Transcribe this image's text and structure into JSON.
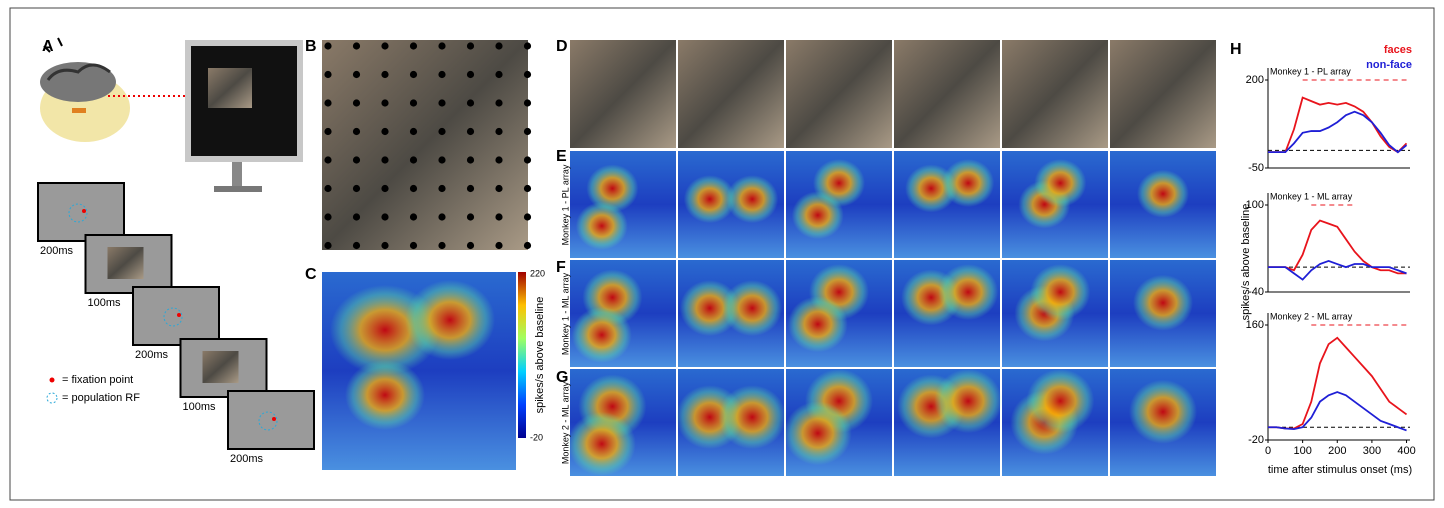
{
  "figure": {
    "panel_labels": [
      "A",
      "B",
      "C",
      "D",
      "E",
      "F",
      "G",
      "H"
    ],
    "a_timings": [
      "200ms",
      "100ms",
      "200ms",
      "100ms",
      "200ms"
    ],
    "a_legend": [
      "= fixation point",
      "= population RF"
    ],
    "c_colorbar": {
      "title": "spikes/s above baseline",
      "ticks": [
        220,
        -20
      ]
    },
    "row_labels": [
      "Monkey 1 - PL array",
      "Monkey 1 - ML array",
      "Monkey 2 - ML array"
    ],
    "h_ylabel": "spikes/s above baseline",
    "h_xlabel": "time after stimulus onset (ms)"
  },
  "chart_data": [
    {
      "type": "line",
      "title": "Monkey 1 - PL array",
      "x": [
        0,
        25,
        50,
        75,
        100,
        125,
        150,
        175,
        200,
        225,
        250,
        275,
        300,
        325,
        350,
        375,
        400
      ],
      "xlim": [
        0,
        410
      ],
      "ylim": [
        -50,
        200
      ],
      "yticks": [
        200,
        -50
      ],
      "significance": [
        100,
        400
      ],
      "series": [
        {
          "name": "faces",
          "color": "#e8141c",
          "values": [
            -5,
            -5,
            -5,
            60,
            150,
            140,
            130,
            135,
            130,
            135,
            125,
            110,
            80,
            40,
            10,
            -5,
            20
          ]
        },
        {
          "name": "non-face",
          "color": "#1f1fd6",
          "values": [
            -5,
            -5,
            -5,
            20,
            50,
            55,
            55,
            65,
            80,
            100,
            110,
            100,
            80,
            50,
            15,
            -5,
            15
          ]
        }
      ]
    },
    {
      "type": "line",
      "title": "Monkey 1 - ML array",
      "x": [
        0,
        25,
        50,
        75,
        100,
        125,
        150,
        175,
        200,
        225,
        250,
        275,
        300,
        325,
        350,
        375,
        400
      ],
      "xlim": [
        0,
        410
      ],
      "ylim": [
        -40,
        100
      ],
      "yticks": [
        100,
        -40
      ],
      "significance": [
        125,
        250
      ],
      "series": [
        {
          "name": null,
          "color": "#e8141c",
          "values": [
            0,
            0,
            0,
            -5,
            20,
            60,
            75,
            70,
            65,
            45,
            25,
            10,
            0,
            -5,
            -5,
            -10,
            -10
          ]
        },
        {
          "name": null,
          "color": "#1f1fd6",
          "values": [
            0,
            0,
            0,
            -10,
            -20,
            -5,
            5,
            10,
            5,
            0,
            5,
            5,
            0,
            0,
            0,
            -5,
            -10
          ]
        }
      ]
    },
    {
      "type": "line",
      "title": "Monkey 2 - ML array",
      "x": [
        0,
        25,
        50,
        75,
        100,
        125,
        150,
        175,
        200,
        225,
        250,
        275,
        300,
        325,
        350,
        375,
        400
      ],
      "xlim": [
        0,
        410
      ],
      "ylim": [
        -20,
        160
      ],
      "yticks": [
        160,
        -20
      ],
      "xticks": [
        0,
        100,
        200,
        300,
        400
      ],
      "significance": [
        125,
        400
      ],
      "series": [
        {
          "name": null,
          "color": "#e8141c",
          "values": [
            0,
            0,
            -2,
            -2,
            5,
            40,
            100,
            130,
            140,
            125,
            110,
            95,
            80,
            60,
            40,
            30,
            20
          ]
        },
        {
          "name": null,
          "color": "#1f1fd6",
          "values": [
            0,
            0,
            -2,
            -3,
            0,
            15,
            40,
            50,
            55,
            50,
            40,
            30,
            20,
            10,
            5,
            0,
            -5
          ]
        }
      ]
    }
  ]
}
